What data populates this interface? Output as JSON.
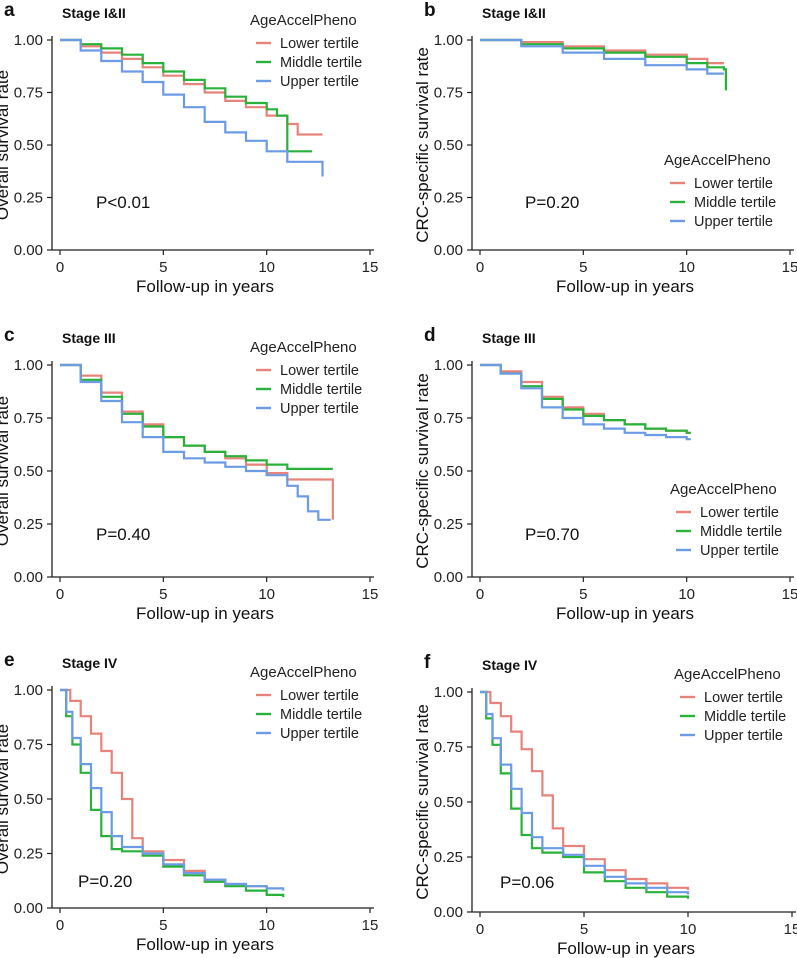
{
  "figure": {
    "legend_title": "AgeAccelPheno",
    "xlabel": "Follow-up in years"
  },
  "colors": {
    "lower": "#E8837B",
    "middle": "#29B23A",
    "upper": "#6C9BE6",
    "axis": "#222222"
  },
  "chart_data": [
    {
      "panel": "a",
      "subtitle": "Stage I&II",
      "type": "line",
      "step": true,
      "ylabel": "Overall survival rate",
      "xlabel": "Follow-up in years",
      "xlim": [
        0,
        15
      ],
      "ylim": [
        0,
        1
      ],
      "xticks": [
        0,
        5,
        10,
        15
      ],
      "yticks": [
        0,
        0.25,
        0.5,
        0.75,
        1
      ],
      "p_value": "P<0.01",
      "legend_title": "AgeAccelPheno",
      "legend_position": "top-right",
      "series": [
        {
          "name": "Lower tertile",
          "color": "#E8837B",
          "x": [
            0,
            1,
            2,
            3,
            4,
            5,
            6,
            7,
            8,
            9,
            10,
            11,
            11.5,
            12.7
          ],
          "y": [
            1.0,
            0.97,
            0.94,
            0.91,
            0.87,
            0.83,
            0.79,
            0.75,
            0.71,
            0.68,
            0.64,
            0.6,
            0.55,
            0.55
          ]
        },
        {
          "name": "Middle tertile",
          "color": "#29B23A",
          "x": [
            0,
            1,
            2,
            3,
            4,
            5,
            6,
            7,
            8,
            9,
            10,
            10.5,
            11,
            12.2
          ],
          "y": [
            1.0,
            0.98,
            0.96,
            0.93,
            0.89,
            0.85,
            0.81,
            0.77,
            0.73,
            0.7,
            0.67,
            0.64,
            0.47,
            0.47
          ]
        },
        {
          "name": "Upper tertile",
          "color": "#6C9BE6",
          "x": [
            0,
            1,
            2,
            3,
            4,
            5,
            6,
            7,
            8,
            9,
            10,
            11,
            12.7
          ],
          "y": [
            1.0,
            0.95,
            0.9,
            0.85,
            0.8,
            0.74,
            0.68,
            0.61,
            0.56,
            0.52,
            0.47,
            0.42,
            0.35
          ]
        }
      ]
    },
    {
      "panel": "b",
      "subtitle": "Stage I&II",
      "type": "line",
      "step": true,
      "ylabel": "CRC-specific survival rate",
      "xlabel": "Follow-up in years",
      "xlim": [
        0,
        15
      ],
      "ylim": [
        0,
        1
      ],
      "xticks": [
        0,
        5,
        10,
        15
      ],
      "yticks": [
        0,
        0.25,
        0.5,
        0.75,
        1
      ],
      "p_value": "P=0.20",
      "legend_title": "AgeAccelPheno",
      "legend_position": "middle-right",
      "series": [
        {
          "name": "Lower tertile",
          "color": "#E8837B",
          "x": [
            0,
            2,
            4,
            6,
            8,
            10,
            11,
            11.8
          ],
          "y": [
            1.0,
            0.99,
            0.97,
            0.95,
            0.93,
            0.91,
            0.89,
            0.89
          ]
        },
        {
          "name": "Middle tertile",
          "color": "#29B23A",
          "x": [
            0,
            2,
            4,
            6,
            8,
            10,
            11,
            11.8,
            11.9
          ],
          "y": [
            1.0,
            0.98,
            0.96,
            0.94,
            0.92,
            0.89,
            0.87,
            0.86,
            0.76
          ]
        },
        {
          "name": "Upper tertile",
          "color": "#6C9BE6",
          "x": [
            0,
            2,
            4,
            6,
            8,
            10,
            11,
            11.8
          ],
          "y": [
            1.0,
            0.97,
            0.94,
            0.91,
            0.88,
            0.86,
            0.84,
            0.84
          ]
        }
      ]
    },
    {
      "panel": "c",
      "subtitle": "Stage III",
      "type": "line",
      "step": true,
      "ylabel": "Overall survival rate",
      "xlabel": "Follow-up in years",
      "xlim": [
        0,
        15
      ],
      "ylim": [
        0,
        1
      ],
      "xticks": [
        0,
        5,
        10,
        15
      ],
      "yticks": [
        0,
        0.25,
        0.5,
        0.75,
        1
      ],
      "p_value": "P=0.40",
      "legend_title": "AgeAccelPheno",
      "legend_position": "top-right",
      "series": [
        {
          "name": "Lower tertile",
          "color": "#E8837B",
          "x": [
            0,
            1,
            2,
            3,
            4,
            5,
            6,
            7,
            8,
            9,
            10,
            11,
            13,
            13.2
          ],
          "y": [
            1.0,
            0.95,
            0.87,
            0.78,
            0.72,
            0.66,
            0.62,
            0.59,
            0.56,
            0.53,
            0.49,
            0.46,
            0.46,
            0.27
          ]
        },
        {
          "name": "Middle tertile",
          "color": "#29B23A",
          "x": [
            0,
            1,
            2,
            3,
            4,
            5,
            6,
            7,
            8,
            9,
            10,
            11,
            13.2
          ],
          "y": [
            1.0,
            0.93,
            0.85,
            0.77,
            0.71,
            0.66,
            0.62,
            0.59,
            0.57,
            0.55,
            0.53,
            0.51,
            0.51
          ]
        },
        {
          "name": "Upper tertile",
          "color": "#6C9BE6",
          "x": [
            0,
            1,
            2,
            3,
            4,
            5,
            6,
            7,
            8,
            9,
            10,
            11,
            11.5,
            12,
            12.5,
            13.1
          ],
          "y": [
            1.0,
            0.92,
            0.83,
            0.73,
            0.66,
            0.59,
            0.56,
            0.54,
            0.52,
            0.5,
            0.48,
            0.43,
            0.38,
            0.31,
            0.27,
            0.27
          ]
        }
      ]
    },
    {
      "panel": "d",
      "subtitle": "Stage III",
      "type": "line",
      "step": true,
      "ylabel": "CRC-specific survival rate",
      "xlabel": "Follow-up in years",
      "xlim": [
        0,
        15
      ],
      "ylim": [
        0,
        1
      ],
      "xticks": [
        0,
        5,
        10,
        15
      ],
      "yticks": [
        0,
        0.25,
        0.5,
        0.75,
        1
      ],
      "p_value": "P=0.70",
      "legend_title": "AgeAccelPheno",
      "legend_position": "middle-right",
      "series": [
        {
          "name": "Lower tertile",
          "color": "#E8837B",
          "x": [
            0,
            1,
            2,
            3,
            4,
            5,
            6,
            7,
            8,
            9,
            10,
            10.2
          ],
          "y": [
            1.0,
            0.97,
            0.92,
            0.85,
            0.8,
            0.77,
            0.74,
            0.72,
            0.7,
            0.69,
            0.68,
            0.68
          ]
        },
        {
          "name": "Middle tertile",
          "color": "#29B23A",
          "x": [
            0,
            1,
            2,
            3,
            4,
            5,
            6,
            7,
            8,
            9,
            10,
            10.2
          ],
          "y": [
            1.0,
            0.96,
            0.9,
            0.84,
            0.79,
            0.76,
            0.74,
            0.72,
            0.7,
            0.69,
            0.68,
            0.68
          ]
        },
        {
          "name": "Upper tertile",
          "color": "#6C9BE6",
          "x": [
            0,
            1,
            2,
            3,
            4,
            5,
            6,
            7,
            8,
            9,
            10,
            10.2
          ],
          "y": [
            1.0,
            0.96,
            0.89,
            0.8,
            0.75,
            0.72,
            0.7,
            0.68,
            0.67,
            0.66,
            0.65,
            0.65
          ]
        }
      ]
    },
    {
      "panel": "e",
      "subtitle": "Stage IV",
      "type": "line",
      "step": true,
      "ylabel": "Overall survival rate",
      "xlabel": "Follow-up in years",
      "xlim": [
        0,
        15
      ],
      "ylim": [
        0,
        1
      ],
      "xticks": [
        0,
        5,
        10,
        15
      ],
      "yticks": [
        0,
        0.25,
        0.5,
        0.75,
        1
      ],
      "p_value": "P=0.20",
      "legend_title": "AgeAccelPheno",
      "legend_position": "top-right",
      "series": [
        {
          "name": "Lower tertile",
          "color": "#E8837B",
          "x": [
            0,
            0.5,
            1,
            1.5,
            2,
            2.5,
            3,
            3.5,
            4,
            5,
            6,
            7,
            8,
            9,
            10
          ],
          "y": [
            1.0,
            0.95,
            0.88,
            0.8,
            0.72,
            0.62,
            0.5,
            0.32,
            0.26,
            0.22,
            0.17,
            0.13,
            0.11,
            0.1,
            0.09
          ]
        },
        {
          "name": "Middle tertile",
          "color": "#29B23A",
          "x": [
            0,
            0.3,
            0.6,
            1,
            1.5,
            2,
            2.5,
            3,
            4,
            5,
            6,
            7,
            8,
            9,
            10,
            10.8
          ],
          "y": [
            1.0,
            0.88,
            0.75,
            0.62,
            0.45,
            0.33,
            0.27,
            0.26,
            0.24,
            0.19,
            0.15,
            0.12,
            0.1,
            0.08,
            0.06,
            0.05
          ]
        },
        {
          "name": "Upper tertile",
          "color": "#6C9BE6",
          "x": [
            0,
            0.3,
            0.6,
            1,
            1.5,
            2,
            2.5,
            3,
            4,
            5,
            6,
            7,
            8,
            9,
            10,
            10.8
          ],
          "y": [
            1.0,
            0.9,
            0.78,
            0.66,
            0.55,
            0.44,
            0.33,
            0.28,
            0.25,
            0.2,
            0.16,
            0.13,
            0.11,
            0.1,
            0.09,
            0.08
          ]
        }
      ]
    },
    {
      "panel": "f",
      "subtitle": "Stage IV",
      "type": "line",
      "step": true,
      "ylabel": "CRC-specific survival rate",
      "xlabel": "Follow-up in years",
      "xlim": [
        0,
        15
      ],
      "ylim": [
        0,
        1
      ],
      "xticks": [
        0,
        5,
        10,
        15
      ],
      "yticks": [
        0,
        0.25,
        0.5,
        0.75,
        1
      ],
      "p_value": "P=0.06",
      "legend_title": "AgeAccelPheno",
      "legend_position": "top-right",
      "series": [
        {
          "name": "Lower tertile",
          "color": "#E8837B",
          "x": [
            0,
            0.5,
            1,
            1.5,
            2,
            2.5,
            3,
            3.5,
            4,
            5,
            6,
            7,
            8,
            9,
            10
          ],
          "y": [
            1.0,
            0.95,
            0.89,
            0.82,
            0.74,
            0.64,
            0.53,
            0.38,
            0.3,
            0.24,
            0.19,
            0.15,
            0.13,
            0.11,
            0.1
          ]
        },
        {
          "name": "Middle tertile",
          "color": "#29B23A",
          "x": [
            0,
            0.3,
            0.6,
            1,
            1.5,
            2,
            2.5,
            3,
            4,
            5,
            6,
            7,
            8,
            9,
            10
          ],
          "y": [
            1.0,
            0.88,
            0.76,
            0.63,
            0.47,
            0.35,
            0.29,
            0.27,
            0.25,
            0.18,
            0.14,
            0.11,
            0.09,
            0.07,
            0.06
          ]
        },
        {
          "name": "Upper tertile",
          "color": "#6C9BE6",
          "x": [
            0,
            0.3,
            0.6,
            1,
            1.5,
            2,
            2.5,
            3,
            4,
            5,
            6,
            7,
            8,
            9,
            10
          ],
          "y": [
            1.0,
            0.9,
            0.79,
            0.67,
            0.56,
            0.45,
            0.34,
            0.29,
            0.26,
            0.21,
            0.16,
            0.13,
            0.11,
            0.09,
            0.08
          ]
        }
      ]
    }
  ]
}
